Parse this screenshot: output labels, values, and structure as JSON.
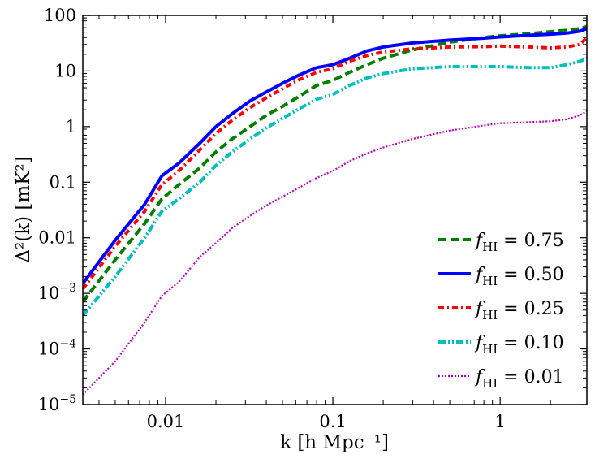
{
  "chart_data": {
    "type": "line",
    "title": "",
    "xlabel": "k [h Mpc⁻¹]",
    "ylabel": "Δ²(k) [mK²]",
    "xscale": "log",
    "yscale": "log",
    "xlim": [
      0.0032,
      3.3
    ],
    "ylim": [
      1e-05,
      100
    ],
    "grid": false,
    "legend_position": "lower-right",
    "x_ticks": [
      {
        "value": 0.01,
        "label": "0.01"
      },
      {
        "value": 0.1,
        "label": "0.1"
      },
      {
        "value": 1,
        "label": "1"
      }
    ],
    "y_ticks": [
      {
        "value": 1e-05,
        "base": "10",
        "exp": "−5"
      },
      {
        "value": 0.0001,
        "base": "10",
        "exp": "−4"
      },
      {
        "value": 0.001,
        "base": "10",
        "exp": "−3"
      },
      {
        "value": 0.01,
        "label": "0.01"
      },
      {
        "value": 0.1,
        "label": "0.1"
      },
      {
        "value": 1,
        "label": "1"
      },
      {
        "value": 10,
        "label": "10"
      },
      {
        "value": 100,
        "label": "100"
      }
    ],
    "series": [
      {
        "name": "f_HI = 0.75",
        "symbol": "f",
        "sub": "HI",
        "value_text": " = 0.75",
        "color": "#007f00",
        "style": "dashed",
        "x": [
          0.0032,
          0.005,
          0.0075,
          0.0095,
          0.012,
          0.016,
          0.02,
          0.025,
          0.032,
          0.04,
          0.05,
          0.063,
          0.08,
          0.1,
          0.126,
          0.16,
          0.2,
          0.3,
          0.5,
          0.8,
          1.0,
          1.5,
          2.0,
          2.5,
          3.0,
          3.3
        ],
        "y": [
          0.0007,
          0.004,
          0.018,
          0.05,
          0.09,
          0.18,
          0.35,
          0.6,
          1.0,
          1.6,
          2.3,
          3.5,
          5.5,
          6.8,
          9.5,
          13,
          17,
          24,
          33,
          40,
          43,
          47,
          51,
          54,
          58,
          63
        ]
      },
      {
        "name": "f_HI = 0.50",
        "symbol": "f",
        "sub": "HI",
        "value_text": " = 0.50",
        "color": "#0000ff",
        "style": "solid",
        "x": [
          0.0032,
          0.005,
          0.0075,
          0.0095,
          0.012,
          0.016,
          0.02,
          0.025,
          0.032,
          0.04,
          0.05,
          0.063,
          0.08,
          0.1,
          0.126,
          0.16,
          0.2,
          0.3,
          0.5,
          0.8,
          1.0,
          1.5,
          2.0,
          2.5,
          3.0,
          3.3
        ],
        "y": [
          0.0015,
          0.009,
          0.04,
          0.13,
          0.22,
          0.5,
          1.0,
          1.7,
          2.9,
          4.2,
          6.0,
          8.5,
          11.5,
          13,
          17,
          23,
          27,
          32,
          36,
          39,
          41,
          44,
          46,
          48,
          52,
          58
        ]
      },
      {
        "name": "f_HI = 0.25",
        "symbol": "f",
        "sub": "HI",
        "value_text": " = 0.25",
        "color": "#ff0000",
        "style": "dashdot",
        "x": [
          0.0032,
          0.005,
          0.0075,
          0.0095,
          0.012,
          0.016,
          0.02,
          0.025,
          0.032,
          0.04,
          0.05,
          0.063,
          0.08,
          0.1,
          0.126,
          0.16,
          0.2,
          0.3,
          0.5,
          0.8,
          1.0,
          1.5,
          2.0,
          2.5,
          3.0,
          3.3
        ],
        "y": [
          0.0012,
          0.007,
          0.03,
          0.09,
          0.16,
          0.38,
          0.75,
          1.3,
          2.2,
          3.3,
          4.8,
          7.0,
          9.5,
          11,
          15,
          19,
          22,
          25,
          27,
          27.5,
          28,
          27,
          26,
          27,
          30,
          40
        ]
      },
      {
        "name": "f_HI = 0.10",
        "symbol": "f",
        "sub": "HI",
        "value_text": " = 0.10",
        "color": "#00bfbf",
        "style": "dashdotdot",
        "x": [
          0.0032,
          0.005,
          0.0075,
          0.0095,
          0.012,
          0.016,
          0.02,
          0.025,
          0.032,
          0.04,
          0.05,
          0.063,
          0.08,
          0.1,
          0.126,
          0.16,
          0.2,
          0.3,
          0.5,
          0.8,
          1.0,
          1.5,
          2.0,
          2.5,
          3.0,
          3.3
        ],
        "y": [
          0.0004,
          0.002,
          0.01,
          0.03,
          0.05,
          0.1,
          0.2,
          0.35,
          0.6,
          0.95,
          1.4,
          2.1,
          3.1,
          3.8,
          5.5,
          7.5,
          9.0,
          11,
          12,
          12,
          12,
          11.5,
          11.5,
          13,
          15,
          17
        ]
      },
      {
        "name": "f_HI = 0.01",
        "symbol": "f",
        "sub": "HI",
        "value_text": " = 0.01",
        "color": "#bf00bf",
        "style": "dotted",
        "x": [
          0.0032,
          0.005,
          0.0075,
          0.0095,
          0.012,
          0.016,
          0.02,
          0.025,
          0.032,
          0.04,
          0.05,
          0.063,
          0.08,
          0.1,
          0.126,
          0.16,
          0.2,
          0.3,
          0.5,
          0.8,
          1.0,
          1.5,
          2.0,
          2.5,
          3.0,
          3.3
        ],
        "y": [
          1.5e-05,
          6e-05,
          0.0003,
          0.0009,
          0.0016,
          0.0045,
          0.008,
          0.015,
          0.025,
          0.038,
          0.055,
          0.08,
          0.12,
          0.16,
          0.24,
          0.33,
          0.42,
          0.6,
          0.85,
          1.05,
          1.15,
          1.2,
          1.25,
          1.35,
          1.6,
          1.9
        ]
      }
    ]
  }
}
